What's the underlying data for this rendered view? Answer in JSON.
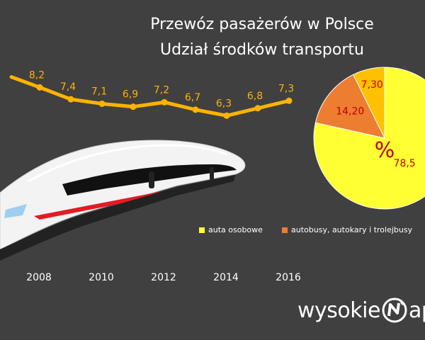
{
  "header": {
    "title_line1": "Przewóz pasażerów w Polsce",
    "title_line2": "Udział środków transportu"
  },
  "brand": {
    "prefix": "wysokie",
    "suffix": "ap"
  },
  "colors": {
    "background": "#404040",
    "line": "#FFB300",
    "pie_cars": "#FFFF33",
    "pie_buses": "#ED7D31",
    "pie_other": "#FFC000",
    "pie_labels": "#C00000"
  },
  "chart_data": [
    {
      "type": "line",
      "x": [
        2007,
        2008,
        2009,
        2010,
        2011,
        2012,
        2013,
        2014,
        2015,
        2016
      ],
      "series": [
        {
          "values": [
            null,
            8.2,
            7.4,
            7.1,
            6.9,
            7.2,
            6.7,
            6.3,
            6.8,
            7.3
          ]
        }
      ],
      "data_labels": [
        "",
        "8,2",
        "7,4",
        "7,1",
        "6,9",
        "7,2",
        "6,7",
        "6,3",
        "6,8",
        "7,3"
      ],
      "x_tick_labels": [
        "2008",
        "2010",
        "2012",
        "2014",
        "2016"
      ],
      "x_ticks": [
        2008,
        2010,
        2012,
        2014,
        2016
      ],
      "xlim": [
        2007.5,
        2016.5
      ],
      "ylim": [
        5.6,
        9.5
      ],
      "title": "",
      "xlabel": "",
      "ylabel": "",
      "grid": false
    },
    {
      "type": "pie",
      "categories": [
        "auta osobowe",
        "autobusy, autokary i trolejbusy",
        ""
      ],
      "values": [
        78.5,
        14.2,
        7.3
      ],
      "data_labels": [
        "78,5",
        "14,20",
        "7,30"
      ],
      "center_label": "%",
      "legend": "bottom",
      "legend_entries": [
        "auta osobowe",
        "autobusy, autokary i trolejbusy"
      ]
    }
  ]
}
